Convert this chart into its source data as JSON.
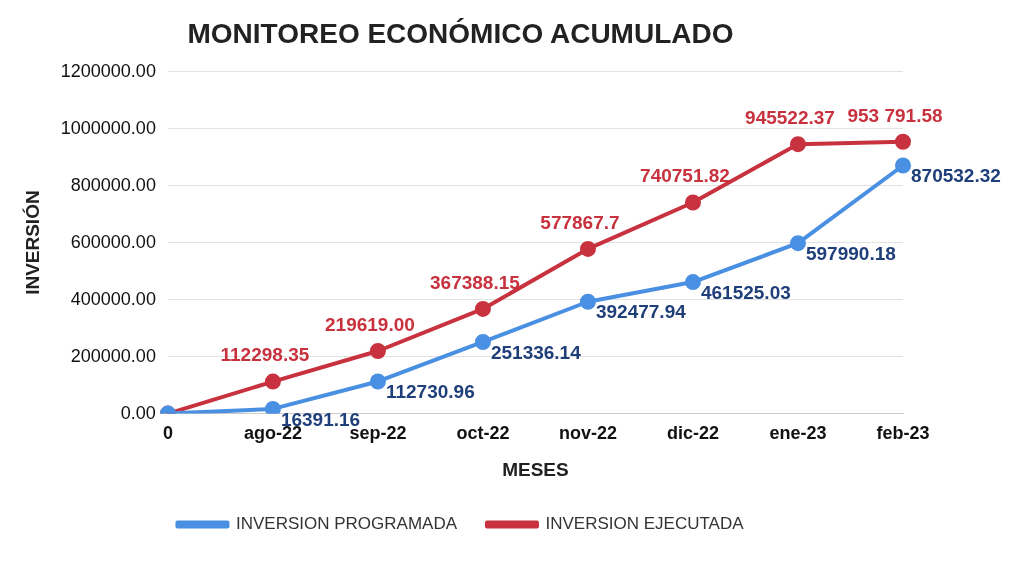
{
  "chart_data": {
    "type": "line",
    "title": "MONITOREO ECONÓMICO ACUMULADO",
    "xlabel": "MESES",
    "ylabel": "INVERSIÓN",
    "categories": [
      "0",
      "ago-22",
      "sep-22",
      "oct-22",
      "nov-22",
      "dic-22",
      "ene-23",
      "feb-23"
    ],
    "series": [
      {
        "name": "INVERSION PROGRAMADA",
        "color": "#4a90e2",
        "values": [
          0,
          16391.16,
          112730.96,
          251336.14,
          392477.94,
          461525.03,
          597990.18,
          870532.32
        ],
        "value_labels": [
          null,
          "16391.16",
          "112730.96",
          "251336.14",
          "392477.94",
          "461525.03",
          "597990.18",
          "870532.32"
        ]
      },
      {
        "name": "INVERSION EJECUTADA",
        "color": "#c8323f",
        "values": [
          0,
          112298.35,
          219619.0,
          367388.15,
          577867.7,
          740751.82,
          945522.37,
          953791.58
        ],
        "value_labels": [
          null,
          "112298.35",
          "219619.00",
          "367388.15",
          "577867.7",
          "740751.82",
          "945522.37",
          "953 791.58"
        ]
      }
    ],
    "ylim": [
      0,
      1200000
    ],
    "yticks": [
      {
        "value": 0,
        "label": "0.00"
      },
      {
        "value": 200000,
        "label": "200000.00"
      },
      {
        "value": 400000,
        "label": "400000.00"
      },
      {
        "value": 600000,
        "label": "600000.00"
      },
      {
        "value": 800000,
        "label": "800000.00"
      },
      {
        "value": 1000000,
        "label": "1000000.00"
      },
      {
        "value": 1200000,
        "label": "1200000.00"
      }
    ],
    "grid": "y",
    "legend": "bottom",
    "marker": "circle",
    "line_style": "solid"
  }
}
